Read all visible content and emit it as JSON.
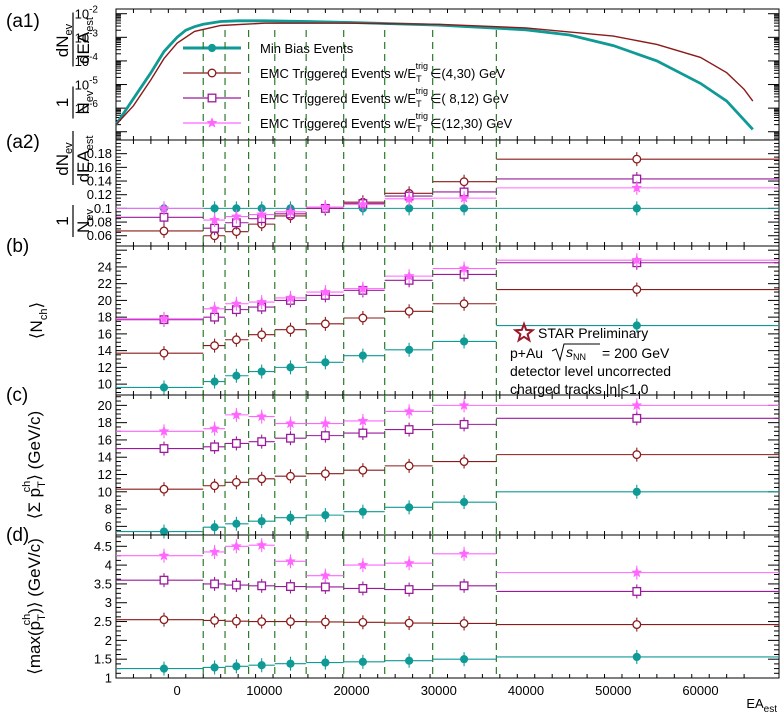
{
  "chart_data": {
    "type": "scatter",
    "xlabel": "EA_est",
    "xlim": [
      -7000,
      69000
    ],
    "x_ticks": [
      "0",
      "10000",
      "20000",
      "30000",
      "40000",
      "50000",
      "60000"
    ],
    "bin_edges": [
      -7000,
      3000,
      5500,
      8200,
      11200,
      14800,
      19100,
      23800,
      29300,
      36600,
      69000
    ],
    "x_centers": [
      -1500,
      4300,
      6800,
      9700,
      13000,
      17000,
      21300,
      26600,
      32900,
      52700
    ],
    "series_names": [
      "Min Bias Events",
      "EMC Triggered Events w/E_T^trig ∈(4,30) GeV",
      "EMC Triggered Events w/E_T^trig ∈( 8,12) GeV",
      "EMC Triggered Events w/E_T^trig ∈(12,30) GeV"
    ],
    "colors": [
      "#0f9a96",
      "#8b1a1a",
      "#9b1a9b",
      "#ff66ff"
    ],
    "legend": {
      "minbias": "Min Bias Events",
      "emc_prefix": "EMC Triggered Events w/E",
      "trig_sub": "T",
      "trig_sup": "trig",
      "r1": "∈(4,30) GeV",
      "r2": "∈( 8,12) GeV",
      "r3": "∈(12,30) GeV"
    },
    "annotation": {
      "preliminary": "STAR Preliminary",
      "system_a": "p+Au",
      "system_b": "s",
      "system_sub": "NN",
      "system_c": " = 200 GeV",
      "line3": "detector level uncorrected",
      "line4": "charged tracks |η|<1.0"
    },
    "panels": [
      {
        "id": "a1",
        "label": "(a1)",
        "ylabel_main": "dN",
        "ylabel_main_sub": "ev",
        "ylabel_den": "dEA",
        "ylabel_den_sub": "est",
        "ylabel_pre_num": "1",
        "ylabel_pre_den": "N",
        "ylabel_pre_den_sub": "ev",
        "scale": "log",
        "ylim_exp": [
          -7.35,
          -1.8
        ],
        "y_ticks_exp": [
          -6,
          -5,
          -4,
          -3,
          -2
        ],
        "y_tick_mant": "10",
        "distributions": [
          {
            "name": "Min Bias Events",
            "x": [
              -7000,
              -5000,
              -3000,
              -1500,
              0,
              1000,
              2000,
              3000,
              5000,
              7000,
              10000,
              15000,
              20000,
              30000,
              40000,
              45000,
              50000,
              55000,
              60000,
              63000,
              66000
            ],
            "y": [
              -6.7,
              -5.6,
              -4.5,
              -3.6,
              -3.0,
              -2.7,
              -2.55,
              -2.45,
              -2.33,
              -2.3,
              -2.3,
              -2.33,
              -2.37,
              -2.48,
              -2.68,
              -2.9,
              -3.35,
              -4.0,
              -4.95,
              -5.7,
              -6.9
            ]
          },
          {
            "name": "EMC Triggered Events w/E_T^trig ∈(4,30) GeV",
            "x": [
              -7000,
              -5000,
              -3000,
              -1500,
              0,
              2000,
              5000,
              10000,
              20000,
              30000,
              40000,
              50000,
              55000,
              60000,
              63000,
              65000,
              66000
            ],
            "y": [
              -6.7,
              -5.9,
              -4.8,
              -3.9,
              -3.25,
              -2.75,
              -2.5,
              -2.4,
              -2.4,
              -2.45,
              -2.6,
              -2.95,
              -3.3,
              -3.85,
              -4.5,
              -5.2,
              -5.7
            ]
          }
        ]
      },
      {
        "id": "a2",
        "label": "(a2)",
        "ylabel_main": "dN",
        "ylabel_main_sub": "ev",
        "ylabel_den": "dEA",
        "ylabel_den_sub": "est",
        "ylabel_pre_num": "1",
        "ylabel_pre_den": "N",
        "ylabel_pre_den_sub": "ev",
        "ylim": [
          0.045,
          0.2
        ],
        "y_ticks": [
          "0.06",
          "0.08",
          "0.1",
          "0.12",
          "0.14",
          "0.16",
          "0.18"
        ],
        "series": [
          {
            "name": "Min Bias Events",
            "values": [
              0.1,
              0.1,
              0.1,
              0.1,
              0.1,
              0.1,
              0.1,
              0.1,
              0.1,
              0.1
            ]
          },
          {
            "name": "EMC Triggered Events w/E_T^trig ∈(4,30) GeV",
            "values": [
              0.067,
              0.06,
              0.066,
              0.077,
              0.089,
              0.1,
              0.109,
              0.122,
              0.139,
              0.172
            ]
          },
          {
            "name": "EMC Triggered Events w/E_T^trig ∈( 8,12) GeV",
            "values": [
              0.087,
              0.071,
              0.079,
              0.085,
              0.092,
              0.1,
              0.107,
              0.118,
              0.124,
              0.143
            ]
          },
          {
            "name": "EMC Triggered Events w/E_T^trig ∈(12,30) GeV",
            "values": [
              0.1,
              0.083,
              0.088,
              0.091,
              0.095,
              0.102,
              0.106,
              0.114,
              0.115,
              0.13
            ]
          }
        ]
      },
      {
        "id": "b",
        "label": "(b)",
        "ylabel": "⟨N",
        "ylabel_sub": "ch",
        "ylabel_end": "⟩",
        "ylim": [
          8.7,
          26.5
        ],
        "y_ticks": [
          "10",
          "12",
          "14",
          "16",
          "18",
          "20",
          "22",
          "24"
        ],
        "series": [
          {
            "name": "Min Bias Events",
            "values": [
              9.6,
              10.3,
              11.0,
              11.5,
              12.0,
              12.6,
              13.4,
              14.1,
              15.1,
              17.0
            ]
          },
          {
            "name": "EMC Triggered Events w/E_T^trig ∈(4,30) GeV",
            "values": [
              13.7,
              14.6,
              15.3,
              15.9,
              16.5,
              17.2,
              17.9,
              18.7,
              19.6,
              21.3
            ]
          },
          {
            "name": "EMC Triggered Events w/E_T^trig ∈( 8,12) GeV",
            "values": [
              17.7,
              18.0,
              18.9,
              19.2,
              20.0,
              20.6,
              21.2,
              22.4,
              23.1,
              24.5
            ]
          },
          {
            "name": "EMC Triggered Events w/E_T^trig ∈(12,30) GeV",
            "values": [
              17.8,
              19.0,
              19.6,
              19.8,
              20.3,
              21.0,
              21.4,
              22.9,
              23.8,
              24.8
            ]
          }
        ]
      },
      {
        "id": "c",
        "label": "(c)",
        "ylabel": "⟨Σ p",
        "ylabel_sub": "T",
        "ylabel_sup": "ch",
        "ylabel_end": "⟩ (GeV/c)",
        "ylim": [
          5.0,
          21.2
        ],
        "y_ticks": [
          "6",
          "8",
          "10",
          "12",
          "14",
          "16",
          "18",
          "20"
        ],
        "series": [
          {
            "name": "Min Bias Events",
            "values": [
              5.4,
              5.9,
              6.3,
              6.6,
              7.0,
              7.3,
              7.7,
              8.2,
              8.8,
              10.0
            ]
          },
          {
            "name": "EMC Triggered Events w/E_T^trig ∈(4,30) GeV",
            "values": [
              10.3,
              10.7,
              11.1,
              11.5,
              11.8,
              12.1,
              12.5,
              13.0,
              13.5,
              14.3
            ]
          },
          {
            "name": "EMC Triggered Events w/E_T^trig ∈( 8,12) GeV",
            "values": [
              15.0,
              15.2,
              15.6,
              15.8,
              16.2,
              16.5,
              16.8,
              17.2,
              17.8,
              18.5
            ]
          },
          {
            "name": "EMC Triggered Events w/E_T^trig ∈(12,30) GeV",
            "values": [
              17.0,
              17.3,
              18.9,
              18.7,
              17.9,
              17.9,
              18.2,
              19.3,
              20.0,
              20.0
            ]
          }
        ]
      },
      {
        "id": "d",
        "label": "(d)",
        "ylabel": "⟨max(p",
        "ylabel_sub": "T",
        "ylabel_sup": "ch",
        "ylabel_end": ")⟩ (GeV/c)",
        "ylim": [
          1.0,
          4.8
        ],
        "y_ticks": [
          "1",
          "1.5",
          "2",
          "2.5",
          "3",
          "3.5",
          "4",
          "4.5"
        ],
        "series": [
          {
            "name": "Min Bias Events",
            "values": [
              1.25,
              1.28,
              1.31,
              1.34,
              1.38,
              1.41,
              1.43,
              1.46,
              1.5,
              1.56
            ]
          },
          {
            "name": "EMC Triggered Events w/E_T^trig ∈(4,30) GeV",
            "values": [
              2.55,
              2.53,
              2.51,
              2.5,
              2.5,
              2.49,
              2.48,
              2.46,
              2.45,
              2.42
            ]
          },
          {
            "name": "EMC Triggered Events w/E_T^trig ∈( 8,12) GeV",
            "values": [
              3.6,
              3.5,
              3.47,
              3.45,
              3.43,
              3.42,
              3.38,
              3.35,
              3.45,
              3.3
            ]
          },
          {
            "name": "EMC Triggered Events w/E_T^trig ∈(12,30) GeV",
            "values": [
              4.25,
              4.35,
              4.5,
              4.53,
              4.1,
              3.72,
              4.0,
              4.05,
              4.3,
              3.8
            ]
          }
        ]
      }
    ]
  }
}
